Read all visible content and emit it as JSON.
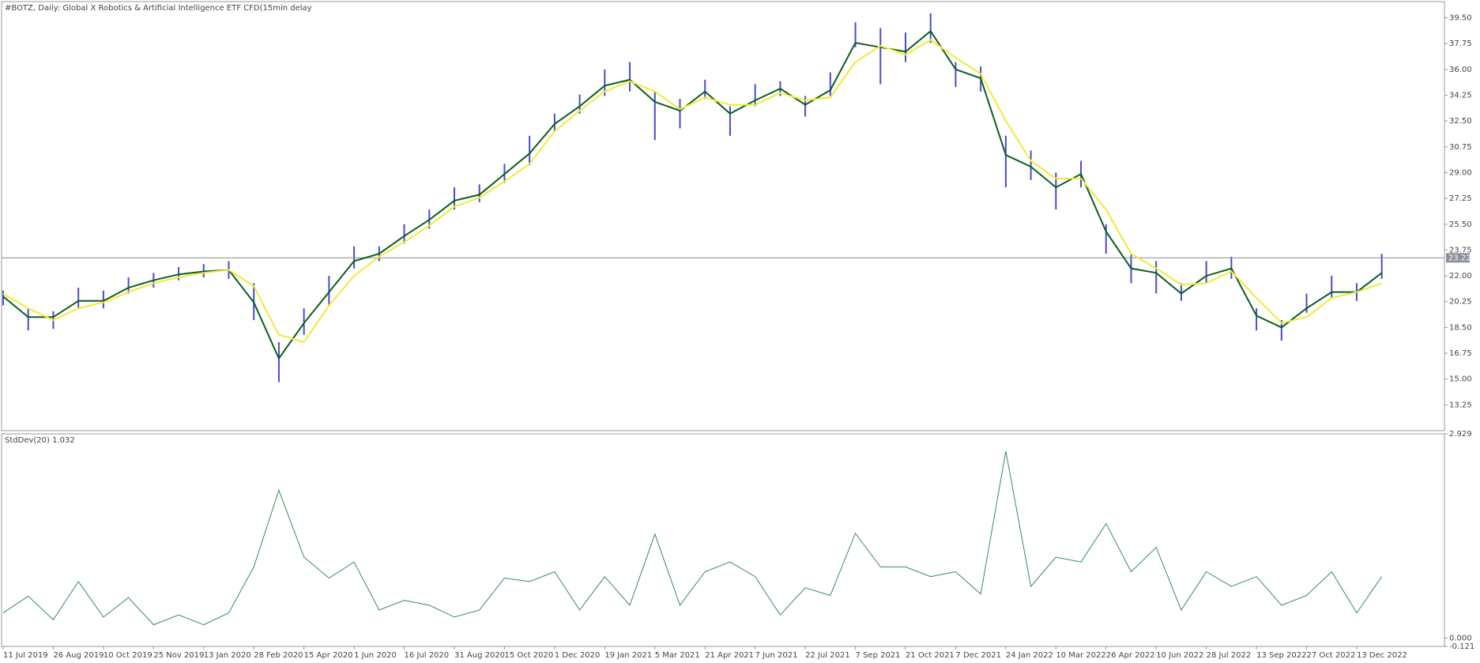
{
  "chart_data": [
    {
      "type": "ohlc",
      "title": "#BOTZ, Daily:  Global X Robotics & Artificial Intelligence ETF CFD(15min delay",
      "categories": [
        "11 Jul 2019",
        null,
        "26 Aug 2019",
        null,
        "10 Oct 2019",
        null,
        "25 Nov 2019",
        null,
        "13 Jan 2020",
        null,
        "28 Feb 2020",
        null,
        "15 Apr 2020",
        null,
        "1 Jun 2020",
        null,
        "16 Jul 2020",
        null,
        "31 Aug 2020",
        null,
        "15 Oct 2020",
        null,
        "1 Dec 2020",
        null,
        "19 Jan 2021",
        null,
        "5 Mar 2021",
        null,
        "21 Apr 2021",
        null,
        "7 Jun 2021",
        null,
        "22 Jul 2021",
        null,
        "7 Sep 2021",
        null,
        "21 Oct 2021",
        null,
        "7 Dec 2021",
        null,
        "24 Jan 2022",
        null,
        "10 Mar 2022",
        null,
        "26 Apr 2022",
        null,
        "10 Jun 2022",
        null,
        "28 Jul 2022",
        null,
        "13 Sep 2022",
        null,
        "27 Oct 2022",
        null,
        "13 Dec 2022",
        null
      ],
      "high": [
        21,
        19.8,
        19.6,
        21.2,
        21,
        21.9,
        22.2,
        22.6,
        22.8,
        23,
        21.5,
        17.5,
        19.8,
        22,
        24,
        24,
        25.5,
        26.5,
        28,
        28.2,
        29.6,
        31.5,
        33,
        34.3,
        36,
        36.5,
        34.5,
        34,
        35.3,
        33.5,
        35,
        35.2,
        34.2,
        35.8,
        39.2,
        38.8,
        38.5,
        39.8,
        36.5,
        36.2,
        31.5,
        30.5,
        29,
        29.8,
        25.5,
        23.5,
        23,
        21.5,
        23,
        23.3,
        19.8,
        19,
        20.8,
        22,
        21.5,
        23.5
      ],
      "low": [
        20,
        18.3,
        18.4,
        19.8,
        19.8,
        20.8,
        21.2,
        21.7,
        21.9,
        21.8,
        19,
        14.8,
        18,
        20,
        22.5,
        23,
        24.2,
        25.2,
        26.5,
        27,
        28.3,
        29.5,
        31.8,
        33,
        34.2,
        34.5,
        31.2,
        32,
        34,
        31.5,
        33.5,
        34.2,
        32.8,
        34.2,
        37.5,
        35,
        36.5,
        37.8,
        34.8,
        34.5,
        28,
        28.5,
        26.5,
        28,
        23.5,
        21.5,
        20.8,
        20.3,
        21.5,
        21.8,
        18.3,
        17.6,
        19.5,
        20.5,
        20.3,
        21.8
      ],
      "bar_color": "#4a4ad0",
      "series": [
        {
          "color": "#0b5e1c",
          "values": [
            20.6,
            19.2,
            19.2,
            20.3,
            20.3,
            21.2,
            21.7,
            22.1,
            22.3,
            22.4,
            20.2,
            16.4,
            18.8,
            20.9,
            23.0,
            23.5,
            24.7,
            25.8,
            27.1,
            27.5,
            28.9,
            30.3,
            32.3,
            33.5,
            34.9,
            35.3,
            33.8,
            33.2,
            34.5,
            33,
            33.9,
            34.7,
            33.6,
            34.6,
            37.8,
            37.5,
            37.2,
            38.6,
            36.0,
            35.4,
            30.2,
            29.4,
            28.0,
            28.9,
            25.0,
            22.5,
            22.2,
            20.8,
            22.0,
            22.5,
            19.3,
            18.5,
            19.8,
            20.9,
            20.9,
            22.2
          ]
        },
        {
          "color": "#f2ea3a",
          "values": [
            20.8,
            19.8,
            19.0,
            19.8,
            20.2,
            20.9,
            21.5,
            21.9,
            22.2,
            22.4,
            21.3,
            18.0,
            17.5,
            20.0,
            22.0,
            23.3,
            24.3,
            25.4,
            26.7,
            27.3,
            28.4,
            29.6,
            31.8,
            33.2,
            34.5,
            35.2,
            34.5,
            33.3,
            34.1,
            33.6,
            33.6,
            34.4,
            33.9,
            34.1,
            36.5,
            37.6,
            37.0,
            38.0,
            36.8,
            35.7,
            32.5,
            29.8,
            28.6,
            28.6,
            26.5,
            23.5,
            22.5,
            21.4,
            21.5,
            22.3,
            20.5,
            18.8,
            19.2,
            20.5,
            20.9,
            21.5
          ]
        }
      ],
      "current_price": 23.22,
      "ylim": [
        11.5,
        40.6
      ],
      "yticks": [
        {
          "value": 13.25,
          "label": "13.25"
        },
        {
          "value": 15,
          "label": "15.00"
        },
        {
          "value": 16.75,
          "label": "16.75"
        },
        {
          "value": 18.5,
          "label": "18.50"
        },
        {
          "value": 20.25,
          "label": "20.25"
        },
        {
          "value": 22,
          "label": "22.00"
        },
        {
          "value": 23.75,
          "label": "23.75"
        },
        {
          "value": 25.5,
          "label": "25.50"
        },
        {
          "value": 27.25,
          "label": "27.25"
        },
        {
          "value": 29,
          "label": "29.00"
        },
        {
          "value": 30.75,
          "label": "30.75"
        },
        {
          "value": 32.5,
          "label": "32.50"
        },
        {
          "value": 34.25,
          "label": "34.25"
        },
        {
          "value": 36,
          "label": "36.00"
        },
        {
          "value": 37.75,
          "label": "37.75"
        },
        {
          "value": 39.5,
          "label": "39.50"
        }
      ]
    },
    {
      "type": "line",
      "title": "StdDev(20) 1.032",
      "series": [
        {
          "color": "#3a8a5a",
          "values": [
            0.36,
            0.6,
            0.26,
            0.81,
            0.3,
            0.58,
            0.19,
            0.33,
            0.19,
            0.36,
            1.02,
            2.12,
            1.16,
            0.86,
            1.09,
            0.4,
            0.54,
            0.47,
            0.3,
            0.4,
            0.86,
            0.81,
            0.95,
            0.4,
            0.88,
            0.47,
            1.49,
            0.47,
            0.95,
            1.09,
            0.88,
            0.33,
            0.72,
            0.61,
            1.5,
            1.02,
            1.02,
            0.88,
            0.95,
            0.63,
            2.68,
            0.74,
            1.16,
            1.09,
            1.64,
            0.95,
            1.3,
            0.4,
            0.95,
            0.74,
            0.88,
            0.47,
            0.61,
            0.95,
            0.36,
            0.88
          ]
        }
      ],
      "ylim": [
        -0.121,
        2.929
      ],
      "yticks": [
        -0.121,
        {
          "value": 0,
          "label": "0.000"
        },
        2.929
      ]
    }
  ]
}
